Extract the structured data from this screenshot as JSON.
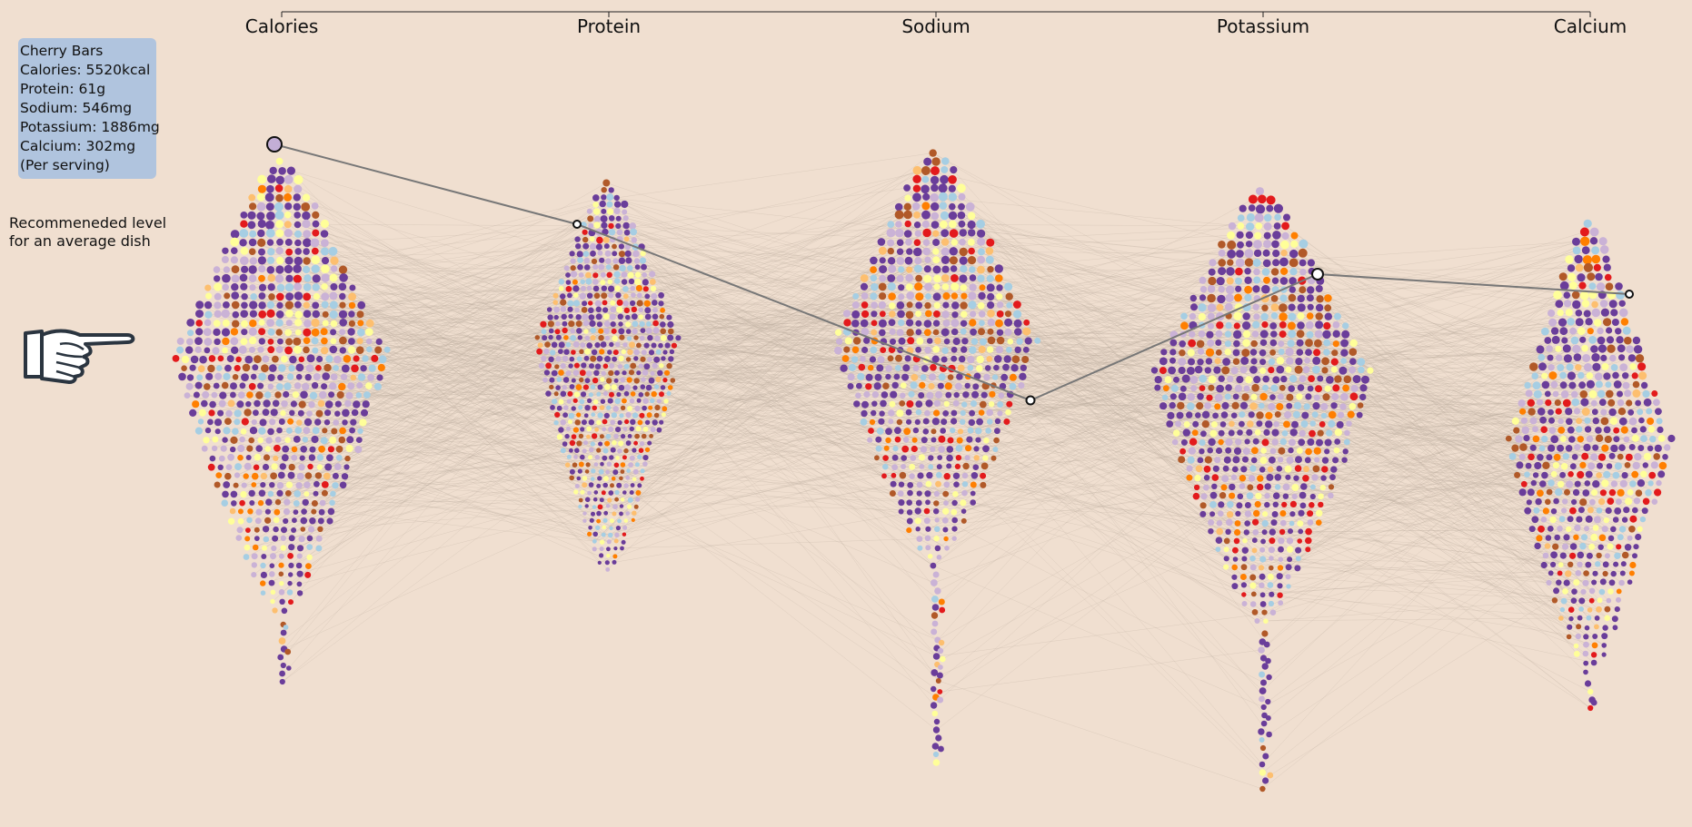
{
  "tooltip": {
    "name": "Cherry Bars",
    "lines": [
      "Calories: 5520kcal",
      "Protein: 61g",
      "Sodium: 546mg",
      "Potassium: 1886mg",
      "Calcium: 302mg",
      "(Per serving)"
    ]
  },
  "legend": {
    "recommended_line1": "Recommeneded level",
    "recommended_line2": "for an average dish"
  },
  "pointer_icon": "pointing-hand-icon",
  "chart_data": {
    "type": "parallel-coordinates-beeswarm",
    "title": "",
    "axes": [
      "Calories",
      "Protein",
      "Sodium",
      "Potassium",
      "Calcium"
    ],
    "units": [
      "kcal",
      "g",
      "mg",
      "mg",
      "mg"
    ],
    "highlighted_item": {
      "name": "Cherry Bars",
      "values": {
        "Calories": 5520,
        "Protein": 61,
        "Sodium": 546,
        "Potassium": 1886,
        "Calcium": 302
      }
    },
    "category_colors": [
      "#6a3d9a",
      "#cab2d6",
      "#a6cee3",
      "#ffff99",
      "#b15928",
      "#e31a1c",
      "#ff7f00",
      "#fdbf6f"
    ],
    "background": "#f0dfd0",
    "line_color": "#777777"
  }
}
